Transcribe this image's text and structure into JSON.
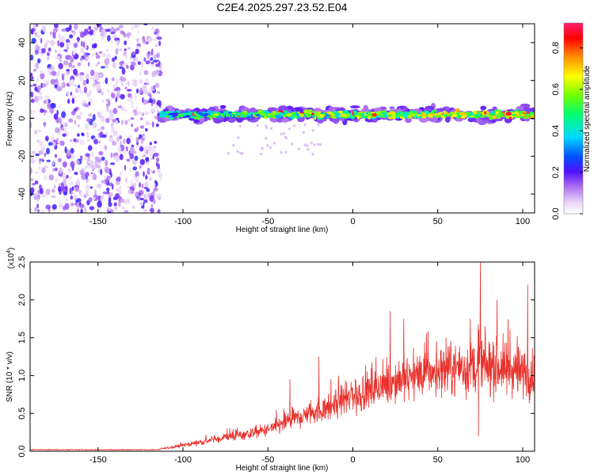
{
  "title": "C2E4.2025.297.23.52.E04",
  "colors": {
    "snr_line": "#e8302a",
    "noise_dots": "#8a2be2",
    "axis": "#000000"
  },
  "chart_data": [
    {
      "type": "heatmap",
      "xlabel": "Height of straight line (km)",
      "ylabel": "Frequency (Hz)",
      "xlim": [
        -190,
        107
      ],
      "ylim": [
        -50,
        50
      ],
      "x_ticks": [
        -150,
        -100,
        -50,
        0,
        50,
        100
      ],
      "y_ticks": [
        -40,
        -20,
        0,
        20,
        40
      ],
      "colorbar": {
        "label": "Normalized spectral amplitude",
        "range": [
          0,
          0.92
        ],
        "ticks": [
          0.0,
          0.2,
          0.4,
          0.6,
          0.8
        ],
        "colormap": "rainbow"
      },
      "regions": [
        {
          "x_range": [
            -190,
            -113
          ],
          "description_level": "broadband noise",
          "amplitude": 0.15
        },
        {
          "x_range": [
            -113,
            107
          ],
          "band_center_hz": 2,
          "band_halfwidth_hz": 5,
          "amplitude": 0.45
        }
      ]
    },
    {
      "type": "line",
      "xlabel": "Height of straight line (km)",
      "ylabel": "SNR (10 * v/v)",
      "y_scale_label": "(x10",
      "y_scale_exponent": "4",
      "xlim": [
        -190,
        107
      ],
      "ylim": [
        0,
        2.5
      ],
      "x_ticks": [
        -150,
        -100,
        -50,
        0,
        50,
        100
      ],
      "y_ticks": [
        "0.0",
        "0.5",
        "1.0",
        "1.5",
        "2.0",
        "2.5"
      ],
      "trend": [
        {
          "x": -190,
          "y": 0.02
        },
        {
          "x": -115,
          "y": 0.02
        },
        {
          "x": -100,
          "y": 0.08
        },
        {
          "x": -75,
          "y": 0.18
        },
        {
          "x": -50,
          "y": 0.28
        },
        {
          "x": -30,
          "y": 0.45
        },
        {
          "x": -10,
          "y": 0.62
        },
        {
          "x": 10,
          "y": 0.8
        },
        {
          "x": 30,
          "y": 0.95
        },
        {
          "x": 50,
          "y": 1.05
        },
        {
          "x": 70,
          "y": 1.1
        },
        {
          "x": 90,
          "y": 1.08
        },
        {
          "x": 107,
          "y": 1.0
        }
      ],
      "peaks": [
        {
          "x": -74,
          "y": 0.3
        },
        {
          "x": -37,
          "y": 0.95
        },
        {
          "x": -20,
          "y": 1.25
        },
        {
          "x": 22,
          "y": 1.85
        },
        {
          "x": 30,
          "y": 1.75
        },
        {
          "x": 75,
          "y": 2.5
        },
        {
          "x": 85,
          "y": 2.0
        },
        {
          "x": 103,
          "y": 2.2
        },
        {
          "x": 74,
          "y": 0.2
        }
      ]
    }
  ]
}
